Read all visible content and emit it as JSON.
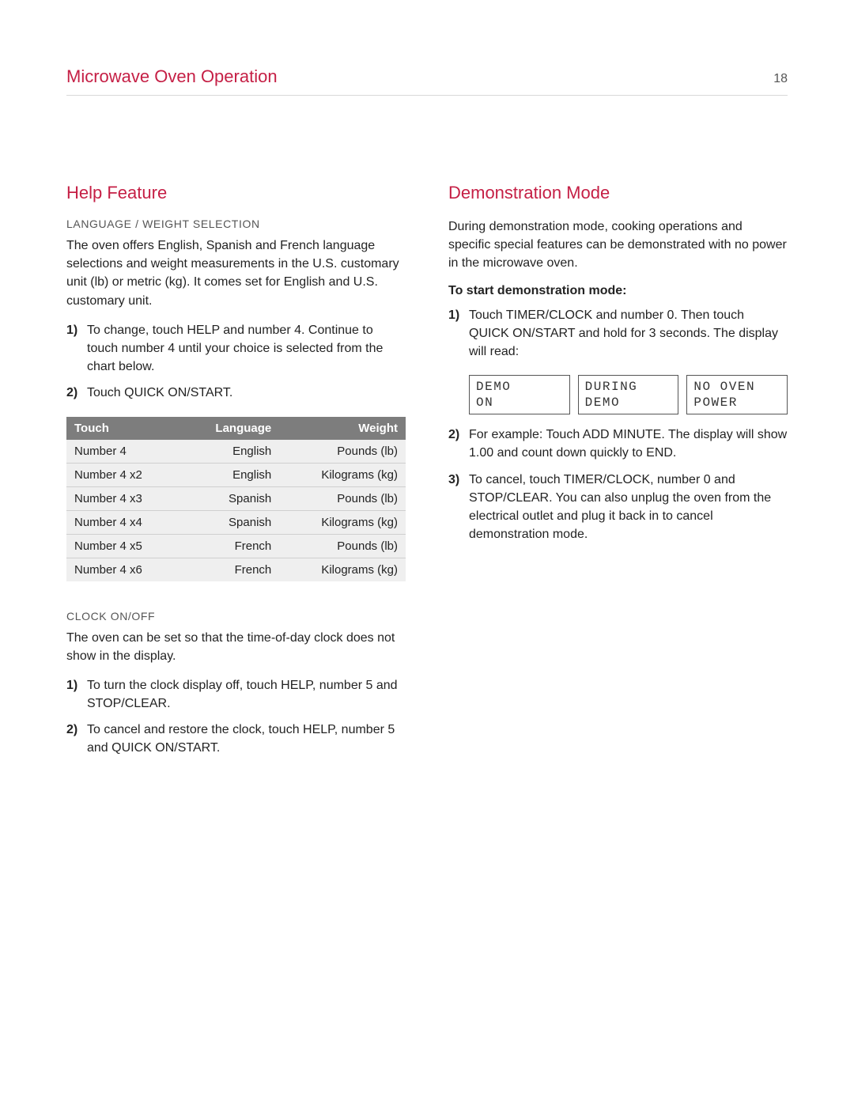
{
  "colors": {
    "accent": "#c51f45",
    "text": "#232323",
    "muted": "#555555",
    "rule": "#d9d9d9",
    "table_header_bg": "#7d7d7d",
    "table_header_fg": "#ffffff",
    "table_row_bg": "#efefef",
    "table_row_border": "#cfcfcf",
    "lcd_border": "#555555",
    "background": "#ffffff"
  },
  "typography": {
    "header_title_pt": 22,
    "section_title_pt": 22,
    "subheading_pt": 14,
    "body_pt": 16,
    "table_pt": 15,
    "lcd_pt": 16
  },
  "header": {
    "title": "Microwave Oven Operation",
    "page_num": "18"
  },
  "left": {
    "section_title": "Help Feature",
    "lang_weight": {
      "subheading": "LANGUAGE / WEIGHT SELECTION",
      "intro": "The oven offers English, Spanish and French language selections and weight measurements in the U.S. customary unit (lb) or metric (kg). It comes set for English and U.S. customary unit.",
      "steps": [
        "To change, touch HELP and number 4. Continue to touch number 4 until your choice is selected from the chart below.",
        "Touch QUICK ON/START."
      ],
      "table": {
        "columns": [
          "Touch",
          "Language",
          "Weight"
        ],
        "col_align": [
          "left",
          "right",
          "right"
        ],
        "rows": [
          [
            "Number 4",
            "English",
            "Pounds (lb)"
          ],
          [
            "Number 4 x2",
            "English",
            "Kilograms (kg)"
          ],
          [
            "Number 4 x3",
            "Spanish",
            "Pounds (lb)"
          ],
          [
            "Number 4 x4",
            "Spanish",
            "Kilograms (kg)"
          ],
          [
            "Number 4 x5",
            "French",
            "Pounds (lb)"
          ],
          [
            "Number 4 x6",
            "French",
            "Kilograms (kg)"
          ]
        ]
      }
    },
    "clock": {
      "subheading": "CLOCK ON/OFF",
      "intro": "The oven can be set so that the time-of-day clock does not show in the display.",
      "steps": [
        "To turn the clock display off, touch HELP, number 5 and STOP/CLEAR.",
        "To cancel and restore the clock, touch HELP, number 5 and QUICK ON/START."
      ]
    }
  },
  "right": {
    "section_title": "Demonstration Mode",
    "intro": "During demonstration mode, cooking operations and specific special features can be demonstrated with no power in the microwave oven.",
    "start_label": "To start demonstration mode:",
    "steps": [
      "Touch TIMER/CLOCK and number 0. Then touch QUICK ON/START and hold for 3 seconds. The display will read:",
      "For example: Touch ADD MINUTE. The display will show 1.00 and count down quickly to END.",
      "To cancel, touch TIMER/CLOCK, number 0 and STOP/CLEAR. You can also unplug the oven from the electrical outlet and plug it back in to cancel demonstration mode."
    ],
    "lcd": [
      "DEMO\nON",
      "DURING\nDEMO",
      "NO OVEN\nPOWER"
    ]
  }
}
